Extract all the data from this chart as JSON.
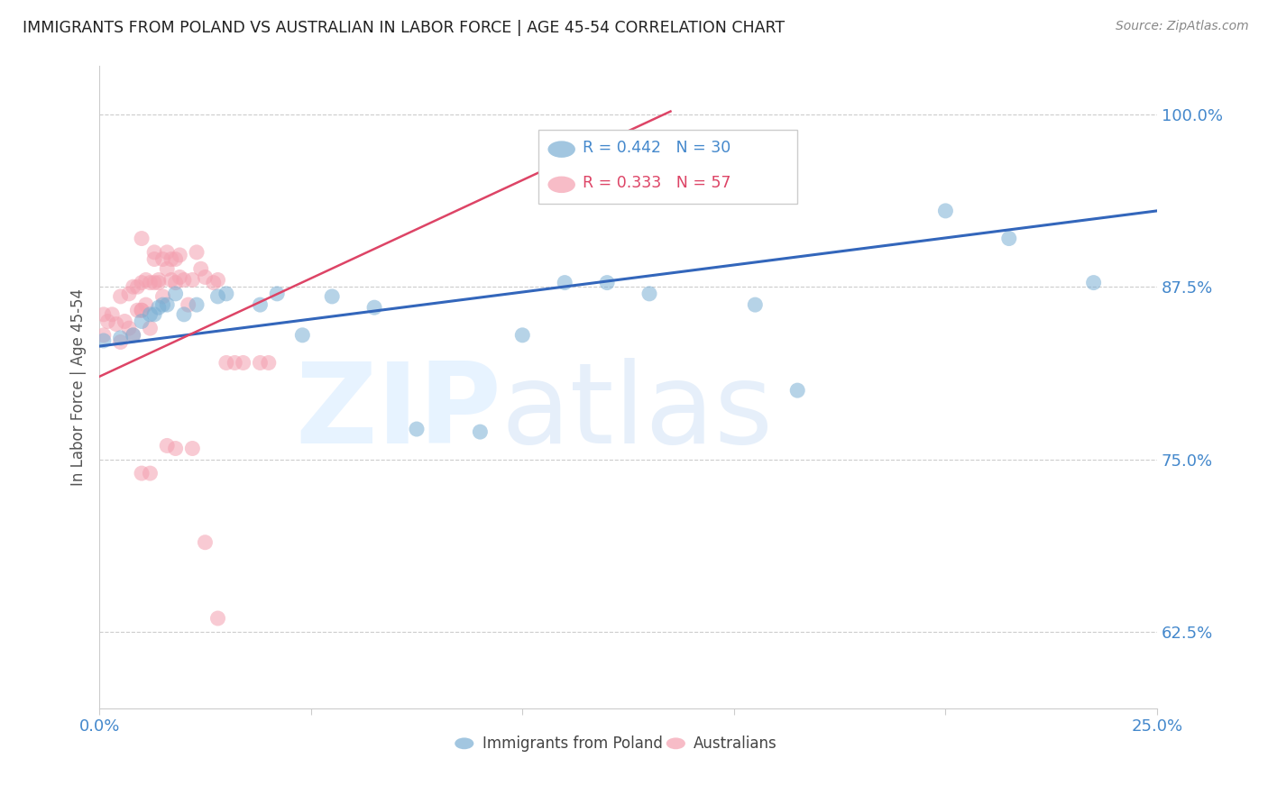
{
  "title": "IMMIGRANTS FROM POLAND VS AUSTRALIAN IN LABOR FORCE | AGE 45-54 CORRELATION CHART",
  "source": "Source: ZipAtlas.com",
  "ylabel": "In Labor Force | Age 45-54",
  "xlim": [
    0.0,
    0.25
  ],
  "ylim": [
    0.57,
    1.035
  ],
  "yticks": [
    0.625,
    0.75,
    0.875,
    1.0
  ],
  "yticklabels": [
    "62.5%",
    "75.0%",
    "87.5%",
    "100.0%"
  ],
  "blue_color": "#7bafd4",
  "pink_color": "#f4a0b0",
  "blue_line_color": "#3366bb",
  "pink_line_color": "#dd4466",
  "label_blue": "Immigrants from Poland",
  "label_pink": "Australians",
  "title_color": "#222222",
  "axis_color": "#4488cc",
  "grid_color": "#cccccc",
  "background_color": "#ffffff",
  "blue_x": [
    0.001,
    0.005,
    0.008,
    0.01,
    0.012,
    0.013,
    0.014,
    0.015,
    0.016,
    0.018,
    0.02,
    0.023,
    0.028,
    0.03,
    0.038,
    0.042,
    0.048,
    0.055,
    0.065,
    0.075,
    0.09,
    0.1,
    0.11,
    0.12,
    0.13,
    0.155,
    0.165,
    0.2,
    0.215,
    0.235
  ],
  "blue_y": [
    0.836,
    0.838,
    0.84,
    0.85,
    0.855,
    0.855,
    0.86,
    0.862,
    0.862,
    0.87,
    0.855,
    0.862,
    0.868,
    0.87,
    0.862,
    0.87,
    0.84,
    0.868,
    0.86,
    0.772,
    0.77,
    0.84,
    0.878,
    0.878,
    0.87,
    0.862,
    0.8,
    0.93,
    0.91,
    0.878
  ],
  "pink_x": [
    0.001,
    0.001,
    0.002,
    0.003,
    0.004,
    0.005,
    0.005,
    0.006,
    0.007,
    0.007,
    0.008,
    0.008,
    0.009,
    0.009,
    0.01,
    0.01,
    0.01,
    0.01,
    0.011,
    0.011,
    0.012,
    0.012,
    0.013,
    0.013,
    0.013,
    0.014,
    0.014,
    0.015,
    0.015,
    0.016,
    0.016,
    0.017,
    0.017,
    0.018,
    0.018,
    0.019,
    0.019,
    0.02,
    0.021,
    0.022,
    0.023,
    0.024,
    0.025,
    0.027,
    0.028,
    0.03,
    0.032,
    0.034,
    0.038,
    0.04,
    0.01,
    0.012,
    0.016,
    0.018,
    0.022,
    0.025,
    0.028
  ],
  "pink_y": [
    0.84,
    0.855,
    0.85,
    0.855,
    0.848,
    0.868,
    0.835,
    0.85,
    0.87,
    0.845,
    0.875,
    0.84,
    0.875,
    0.858,
    0.878,
    0.858,
    0.91,
    0.858,
    0.862,
    0.88,
    0.878,
    0.845,
    0.878,
    0.9,
    0.895,
    0.88,
    0.878,
    0.868,
    0.895,
    0.9,
    0.888,
    0.895,
    0.88,
    0.895,
    0.878,
    0.882,
    0.898,
    0.88,
    0.862,
    0.88,
    0.9,
    0.888,
    0.882,
    0.878,
    0.88,
    0.82,
    0.82,
    0.82,
    0.82,
    0.82,
    0.74,
    0.74,
    0.76,
    0.758,
    0.758,
    0.69,
    0.635
  ],
  "blue_line_x0": 0.0,
  "blue_line_y0": 0.832,
  "blue_line_x1": 0.25,
  "blue_line_y1": 0.93,
  "pink_line_x0": 0.0,
  "pink_line_y0": 0.81,
  "pink_line_x1": 0.135,
  "pink_line_y1": 1.002
}
